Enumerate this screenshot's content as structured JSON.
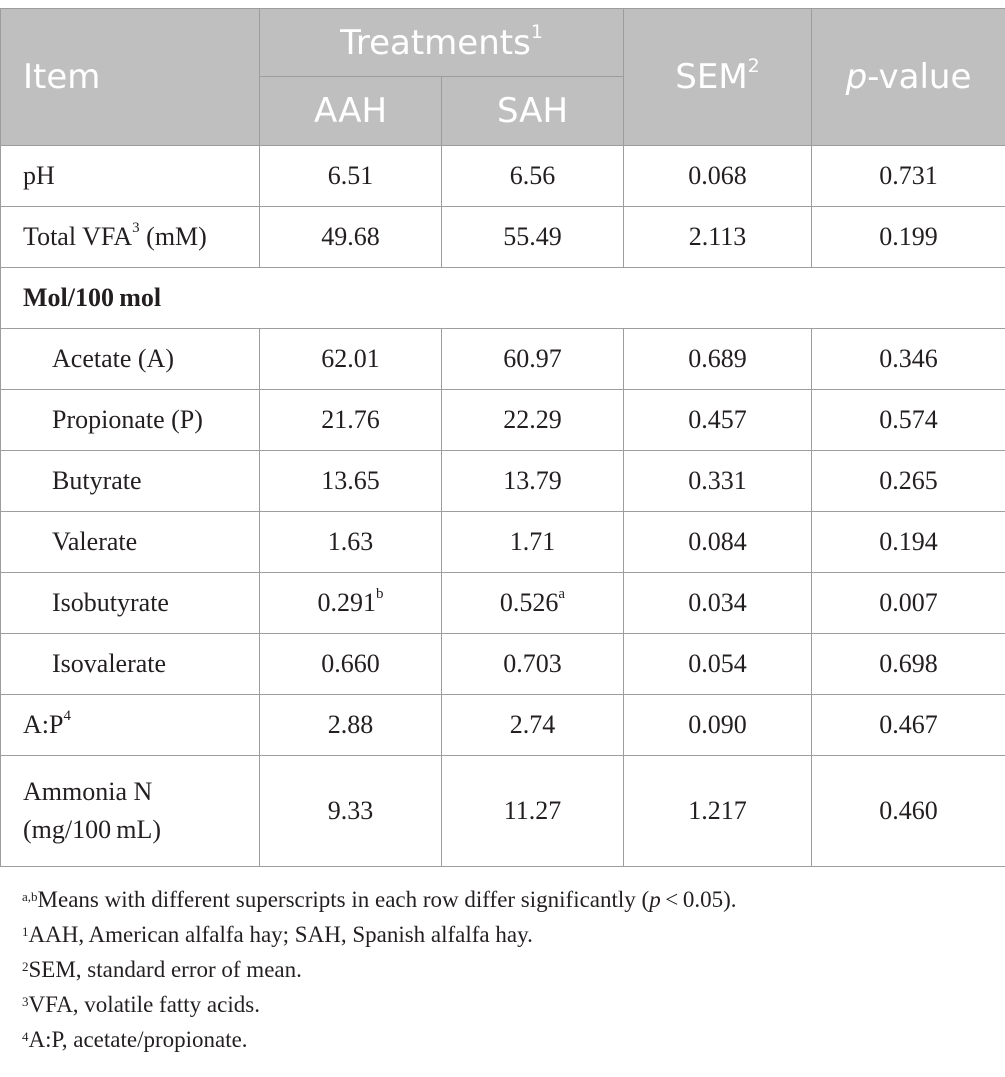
{
  "header": {
    "item": "Item",
    "treatments": "Treatments",
    "treatments_sup": "1",
    "aah": "AAH",
    "sah": "SAH",
    "sem": "SEM",
    "sem_sup": "2",
    "pvalue_p": "p",
    "pvalue_rest": "-value"
  },
  "rows": {
    "ph": {
      "label": "pH",
      "aah": "6.51",
      "sah": "6.56",
      "sem": "0.068",
      "p": "0.731"
    },
    "total_vfa": {
      "label_pre": "Total VFA",
      "label_sup": "3",
      "label_post": " (mM)",
      "aah": "49.68",
      "sah": "55.49",
      "sem": "2.113",
      "p": "0.199"
    },
    "section": "Mol/100 mol",
    "acetate": {
      "label": "Acetate (A)",
      "aah": "62.01",
      "sah": "60.97",
      "sem": "0.689",
      "p": "0.346"
    },
    "propionate": {
      "label": "Propionate (P)",
      "aah": "21.76",
      "sah": "22.29",
      "sem": "0.457",
      "p": "0.574"
    },
    "butyrate": {
      "label": "Butyrate",
      "aah": "13.65",
      "sah": "13.79",
      "sem": "0.331",
      "p": "0.265"
    },
    "valerate": {
      "label": "Valerate",
      "aah": "1.63",
      "sah": "1.71",
      "sem": "0.084",
      "p": "0.194"
    },
    "isobutyrate": {
      "label": "Isobutyrate",
      "aah": "0.291",
      "aah_sup": "b",
      "sah": "0.526",
      "sah_sup": "a",
      "sem": "0.034",
      "p": "0.007"
    },
    "isovalerate": {
      "label": "Isovalerate",
      "aah": "0.660",
      "sah": "0.703",
      "sem": "0.054",
      "p": "0.698"
    },
    "ap": {
      "label_pre": "A:P",
      "label_sup": "4",
      "aah": "2.88",
      "sah": "2.74",
      "sem": "0.090",
      "p": "0.467"
    },
    "ammonia": {
      "label_line1": "Ammonia N",
      "label_line2": "(mg/100 mL)",
      "aah": "9.33",
      "sah": "11.27",
      "sem": "1.217",
      "p": "0.460"
    }
  },
  "footnotes": {
    "f_ab": {
      "sup": "a,b",
      "text_pre": "Means with different superscripts in each row differ significantly (",
      "p": "p",
      "text_post": " < 0.05)."
    },
    "f1": {
      "sup": "1",
      "text": "AAH, American alfalfa hay; SAH, Spanish alfalfa hay."
    },
    "f2": {
      "sup": "2",
      "text": "SEM, standard error of mean."
    },
    "f3": {
      "sup": "3",
      "text": "VFA, volatile fatty acids."
    },
    "f4": {
      "sup": "4",
      "text": "A:P, acetate/propionate."
    }
  }
}
